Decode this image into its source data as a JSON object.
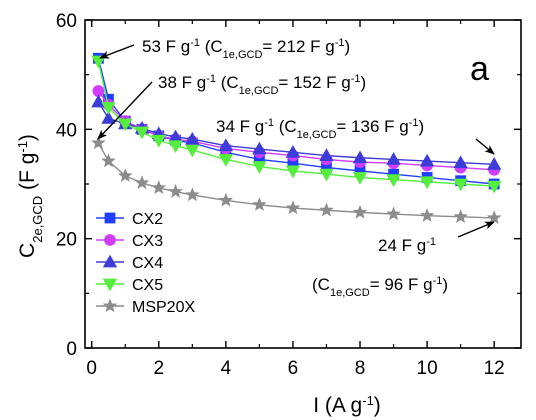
{
  "chart_data": {
    "type": "line",
    "panel_label": "a",
    "xlabel": {
      "main": "I (A g",
      "sup": "-1",
      "tail": ")"
    },
    "ylabel": {
      "main": "C",
      "sub": "2e,GCD",
      "tail": " (F g",
      "sup": "-1",
      "tail2": ")"
    },
    "xlim": [
      -0.2,
      12.8
    ],
    "ylim": [
      0,
      60
    ],
    "xticks": [
      0,
      2,
      4,
      6,
      8,
      10,
      12
    ],
    "xtick_labels": [
      "0",
      "2",
      "4",
      "6",
      "8",
      "10",
      "12"
    ],
    "yticks": [
      0,
      20,
      40,
      60
    ],
    "ytick_labels": [
      "0",
      "20",
      "40",
      "60"
    ],
    "grid": false,
    "legend_position": "lower-left",
    "x": [
      0.2,
      0.5,
      1,
      1.5,
      2,
      2.5,
      3,
      4,
      5,
      6,
      7,
      8,
      9,
      10,
      11,
      12
    ],
    "series": [
      {
        "name": "CX2",
        "color": "#1f3fff",
        "marker": "square",
        "values": [
          53,
          45.5,
          41.5,
          40,
          38.8,
          38,
          37.5,
          35.8,
          34.5,
          33.8,
          33,
          32.4,
          31.8,
          31.2,
          30.6,
          30
        ]
      },
      {
        "name": "CX3",
        "color": "#d23cff",
        "marker": "circle",
        "values": [
          47,
          44.5,
          41.5,
          40,
          38.8,
          38.2,
          37.8,
          36.5,
          35.8,
          35.2,
          34.5,
          34,
          33.8,
          33.4,
          33,
          32.6
        ]
      },
      {
        "name": "CX4",
        "color": "#3c3cd8",
        "marker": "triangle-up",
        "values": [
          45,
          42,
          41,
          40.2,
          39.2,
          38.6,
          38.2,
          37,
          36.4,
          35.8,
          35.2,
          34.8,
          34.5,
          34.2,
          33.9,
          33.6
        ]
      },
      {
        "name": "CX5",
        "color": "#55ee3c",
        "marker": "triangle-down",
        "values": [
          52.5,
          44,
          41,
          39.5,
          38,
          37,
          36.2,
          34.5,
          33.2,
          32.4,
          31.8,
          31.2,
          30.8,
          30.4,
          30,
          29.6
        ]
      },
      {
        "name": "MSP20X",
        "color": "#8c8c8c",
        "marker": "star",
        "values": [
          37.5,
          34.2,
          31.5,
          30.2,
          29.3,
          28.6,
          28,
          27,
          26.2,
          25.6,
          25.2,
          24.8,
          24.5,
          24.2,
          24,
          23.8
        ]
      }
    ],
    "annotations": [
      {
        "id": "a53",
        "pre": "53 F g",
        "sup": "-1",
        "mid": " (C",
        "sub": "1e,GCD",
        "post": "= 212 F g",
        "sup2": "-1",
        "end": ")"
      },
      {
        "id": "a38",
        "pre": "38 F g",
        "sup": "-1",
        "mid": " (C",
        "sub": "1e,GCD",
        "post": "= 152 F g",
        "sup2": "-1",
        "end": ")"
      },
      {
        "id": "a34",
        "pre": "34 F g",
        "sup": "-1",
        "mid": " (C",
        "sub": "1e,GCD",
        "post": "= 136 F g",
        "sup2": "-1",
        "end": ")"
      },
      {
        "id": "a24",
        "pre": "24 F g",
        "sup": "-1"
      },
      {
        "id": "a96",
        "mid": "(C",
        "sub": "1e,GCD",
        "post": "= 96 F g",
        "sup2": "-1",
        "end": ")"
      }
    ]
  }
}
